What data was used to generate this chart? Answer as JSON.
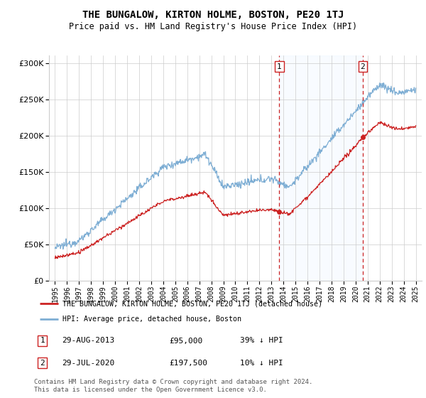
{
  "title": "THE BUNGALOW, KIRTON HOLME, BOSTON, PE20 1TJ",
  "subtitle": "Price paid vs. HM Land Registry's House Price Index (HPI)",
  "hpi_color": "#7eaed4",
  "price_color": "#cc2222",
  "dashed_line_color": "#cc2222",
  "shade_color": "#ddeeff",
  "transaction1_date_num": 2013.66,
  "transaction2_date_num": 2020.58,
  "transaction1_price": 95000,
  "transaction2_price": 197500,
  "ylim": [
    0,
    310000
  ],
  "xlim": [
    1994.5,
    2025.5
  ],
  "legend_label_price": "THE BUNGALOW, KIRTON HOLME, BOSTON, PE20 1TJ (detached house)",
  "legend_label_hpi": "HPI: Average price, detached house, Boston",
  "table_row1": [
    "1",
    "29-AUG-2013",
    "£95,000",
    "39% ↓ HPI"
  ],
  "table_row2": [
    "2",
    "29-JUL-2020",
    "£197,500",
    "10% ↓ HPI"
  ],
  "footer": "Contains HM Land Registry data © Crown copyright and database right 2024.\nThis data is licensed under the Open Government Licence v3.0."
}
